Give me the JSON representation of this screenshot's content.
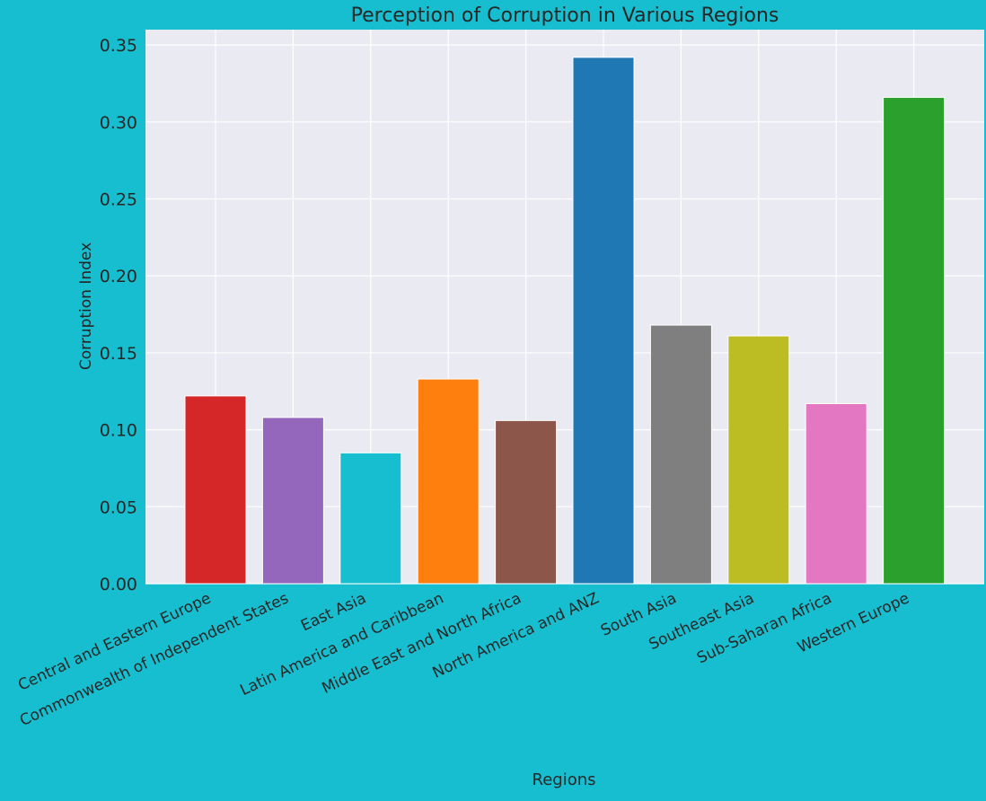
{
  "chart_data": {
    "type": "bar",
    "title": "Perception of Corruption in Various Regions",
    "xlabel": "Regions",
    "ylabel": "Corruption Index",
    "categories": [
      "Central and Eastern Europe",
      "Commonwealth of Independent States",
      "East Asia",
      "Latin America and Caribbean",
      "Middle East and North Africa",
      "North America and ANZ",
      "South Asia",
      "Southeast Asia",
      "Sub-Saharan Africa",
      "Western Europe"
    ],
    "values": [
      0.122,
      0.108,
      0.085,
      0.133,
      0.106,
      0.342,
      0.168,
      0.161,
      0.117,
      0.316
    ],
    "colors": [
      "#d62728",
      "#9467bd",
      "#17becf",
      "#ff7f0e",
      "#8c564b",
      "#1f77b4",
      "#7f7f7f",
      "#bcbd22",
      "#e377c2",
      "#2ca02c"
    ],
    "ylim": [
      0,
      0.36
    ],
    "yticks": [
      "0.00",
      "0.05",
      "0.10",
      "0.15",
      "0.20",
      "0.25",
      "0.30",
      "0.35"
    ],
    "grid": true,
    "background_color": "#17becf",
    "plot_background_color": "#eaeaf2"
  }
}
